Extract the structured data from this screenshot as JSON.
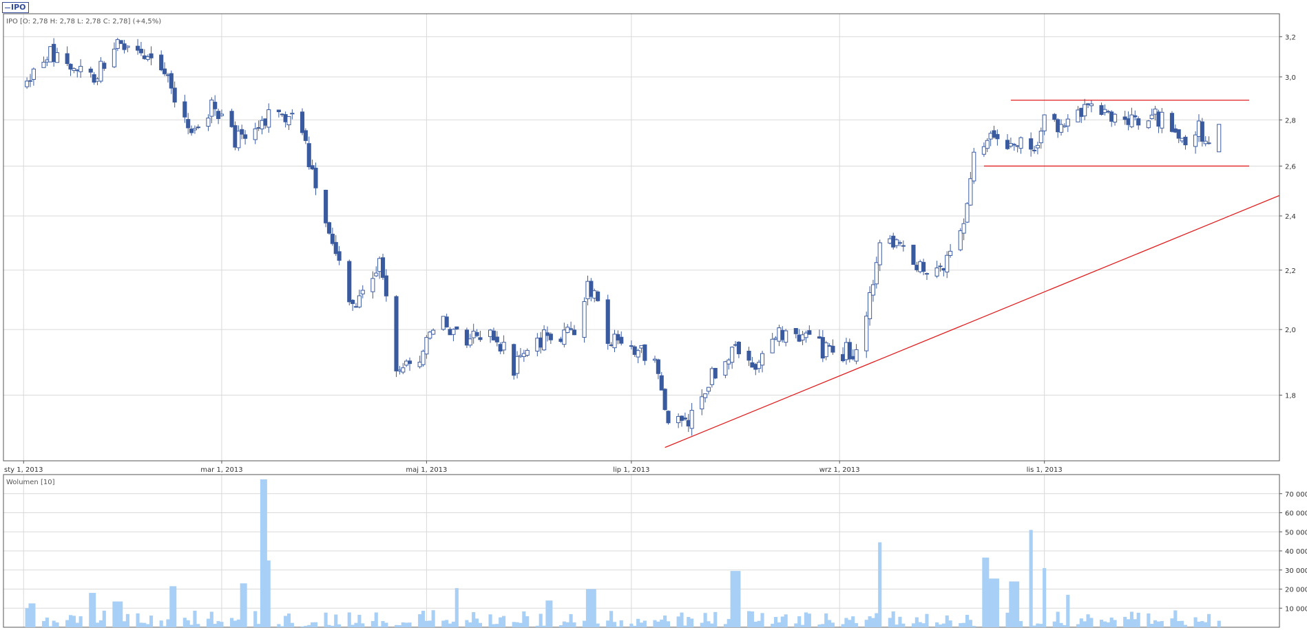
{
  "legend": {
    "symbol": "IPO"
  },
  "info_line": "IPO [O: 2,78  H: 2,78  L: 2,78  C: 2,78] (+4,5%)",
  "volume_title": "Wolumen [10]",
  "colors": {
    "down": "#3a5a9f",
    "up_stroke": "#3a5a9f",
    "up_fill": "#ffffff",
    "volume": "#a8cff5",
    "trend": "#e02020",
    "grid": "#d9d9d9"
  },
  "chart_data": [
    {
      "type": "candlestick",
      "title": "",
      "y_ticks": [
        "3,2",
        "3,0",
        "2,8",
        "2,6",
        "2,4",
        "2,2",
        "2,0",
        "1,8"
      ],
      "y_tick_values": [
        3.2,
        3.0,
        2.8,
        2.6,
        2.4,
        2.2,
        2.0,
        1.8
      ],
      "x_ticks": [
        "sty 1, 2013",
        "mar 1, 2013",
        "maj 1, 2013",
        "lip 1, 2013",
        "wrz 1, 2013",
        "lis 1, 2013"
      ],
      "x_tick_dates": [
        "2013-01-01",
        "2013-03-01",
        "2013-05-01",
        "2013-07-01",
        "2013-09-01",
        "2013-11-01"
      ],
      "x_range": [
        "2012-12-26",
        "2014-01-10"
      ],
      "y_scale": "log",
      "ylim": [
        1.62,
        3.32
      ],
      "grid": true,
      "last_candle": {
        "open": 2.78,
        "high": 2.78,
        "low": 2.78,
        "close": 2.78
      },
      "anchors": [
        [
          "2013-01-01",
          2.92
        ],
        [
          "2013-01-08",
          3.12
        ],
        [
          "2013-01-15",
          3.06
        ],
        [
          "2013-01-22",
          3.0
        ],
        [
          "2013-01-29",
          3.18
        ],
        [
          "2013-02-05",
          3.12
        ],
        [
          "2013-02-12",
          3.06
        ],
        [
          "2013-02-15",
          2.86
        ],
        [
          "2013-02-20",
          2.78
        ],
        [
          "2013-02-26",
          2.85
        ],
        [
          "2013-03-05",
          2.72
        ],
        [
          "2013-03-12",
          2.78
        ],
        [
          "2013-03-18",
          2.85
        ],
        [
          "2013-03-25",
          2.75
        ],
        [
          "2013-03-29",
          2.5
        ],
        [
          "2013-04-03",
          2.32
        ],
        [
          "2013-04-08",
          2.06
        ],
        [
          "2013-04-12",
          2.1
        ],
        [
          "2013-04-17",
          2.22
        ],
        [
          "2013-04-22",
          1.88
        ],
        [
          "2013-04-29",
          1.92
        ],
        [
          "2013-05-06",
          2.02
        ],
        [
          "2013-05-14",
          1.97
        ],
        [
          "2013-05-20",
          2.0
        ],
        [
          "2013-05-27",
          1.88
        ],
        [
          "2013-06-03",
          1.97
        ],
        [
          "2013-06-14",
          1.98
        ],
        [
          "2013-06-18",
          2.17
        ],
        [
          "2013-06-24",
          1.97
        ],
        [
          "2013-07-01",
          1.94
        ],
        [
          "2013-07-08",
          1.9
        ],
        [
          "2013-07-12",
          1.72
        ],
        [
          "2013-07-18",
          1.73
        ],
        [
          "2013-07-25",
          1.86
        ],
        [
          "2013-08-01",
          1.93
        ],
        [
          "2013-08-08",
          1.89
        ],
        [
          "2013-08-14",
          1.98
        ],
        [
          "2013-08-20",
          1.99
        ],
        [
          "2013-08-28",
          1.93
        ],
        [
          "2013-09-05",
          1.93
        ],
        [
          "2013-09-10",
          2.1
        ],
        [
          "2013-09-13",
          2.32
        ],
        [
          "2013-09-20",
          2.26
        ],
        [
          "2013-09-27",
          2.19
        ],
        [
          "2013-10-03",
          2.24
        ],
        [
          "2013-10-08",
          2.4
        ],
        [
          "2013-10-11",
          2.62
        ],
        [
          "2013-10-17",
          2.76
        ],
        [
          "2013-10-22",
          2.7
        ],
        [
          "2013-10-29",
          2.67
        ],
        [
          "2013-11-01",
          2.79
        ],
        [
          "2013-11-07",
          2.77
        ],
        [
          "2013-11-14",
          2.86
        ],
        [
          "2013-11-21",
          2.79
        ],
        [
          "2013-11-28",
          2.8
        ],
        [
          "2013-12-05",
          2.81
        ],
        [
          "2013-12-12",
          2.72
        ],
        [
          "2013-12-17",
          2.76
        ],
        [
          "2013-12-20",
          2.66
        ],
        [
          "2013-12-23",
          2.78
        ]
      ],
      "trendlines": [
        {
          "from": [
            "2013-07-11",
            1.655
          ],
          "to": [
            "2014-01-10",
            2.48
          ]
        },
        {
          "from": [
            "2013-10-22",
            2.89
          ],
          "to": [
            "2014-01-01",
            2.89
          ]
        },
        {
          "from": [
            "2013-10-14",
            2.6
          ],
          "to": [
            "2014-01-01",
            2.6
          ]
        }
      ]
    },
    {
      "type": "bar",
      "title": "Wolumen [10]",
      "y_ticks": [
        "70 000",
        "60 000",
        "50 000",
        "40 000",
        "30 000",
        "20 000",
        "10 000"
      ],
      "y_tick_values": [
        70000,
        60000,
        50000,
        40000,
        30000,
        20000,
        10000
      ],
      "ylim": [
        0,
        80000
      ],
      "grid": true,
      "spikes": [
        [
          "2013-01-01",
          10000
        ],
        [
          "2013-01-04",
          12500
        ],
        [
          "2013-01-21",
          18000
        ],
        [
          "2013-01-29",
          13500
        ],
        [
          "2013-02-15",
          21500
        ],
        [
          "2013-03-08",
          23000
        ],
        [
          "2013-03-14",
          77500
        ],
        [
          "2013-03-16",
          35000
        ],
        [
          "2013-05-11",
          20500
        ],
        [
          "2013-06-07",
          14000
        ],
        [
          "2013-06-19",
          20000
        ],
        [
          "2013-08-01",
          29500
        ],
        [
          "2013-09-14",
          44500
        ],
        [
          "2013-10-14",
          36500
        ],
        [
          "2013-10-17",
          25500
        ],
        [
          "2013-10-23",
          24000
        ],
        [
          "2013-10-27",
          51000
        ],
        [
          "2013-11-02",
          31000
        ],
        [
          "2013-11-09",
          17000
        ]
      ],
      "base_volume": [
        1000,
        9000
      ]
    }
  ]
}
